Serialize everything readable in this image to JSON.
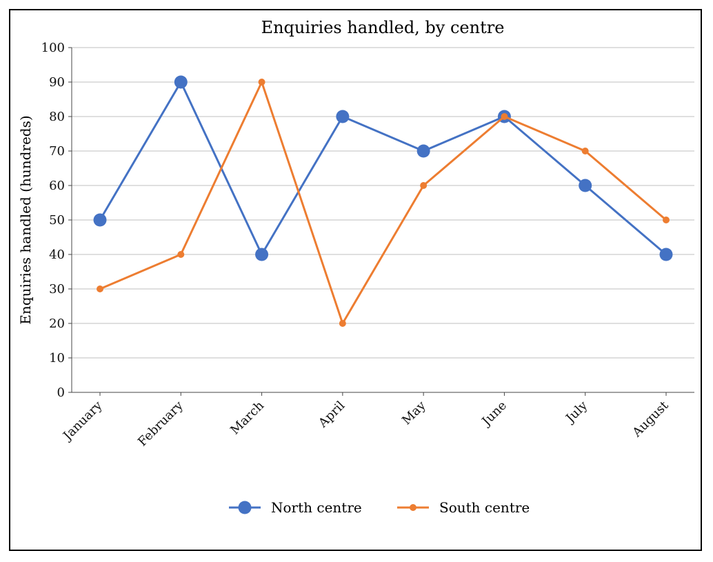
{
  "chart_data": {
    "type": "line",
    "title": "Enquiries handled, by centre",
    "xlabel": "",
    "ylabel": "Enquiries handled (hundreds)",
    "categories": [
      "January",
      "February",
      "March",
      "April",
      "May",
      "June",
      "July",
      "August"
    ],
    "ylim": [
      0,
      100
    ],
    "yticks": [
      0,
      10,
      20,
      30,
      40,
      50,
      60,
      70,
      80,
      90,
      100
    ],
    "grid": true,
    "legend_position": "bottom",
    "series": [
      {
        "name": "North centre",
        "values": [
          50,
          90,
          40,
          80,
          70,
          80,
          60,
          40
        ],
        "color": "#4472c4",
        "marker": "large-circle"
      },
      {
        "name": "South centre",
        "values": [
          30,
          40,
          90,
          20,
          60,
          80,
          70,
          50
        ],
        "color": "#ed7d31",
        "marker": "small-circle"
      }
    ]
  }
}
